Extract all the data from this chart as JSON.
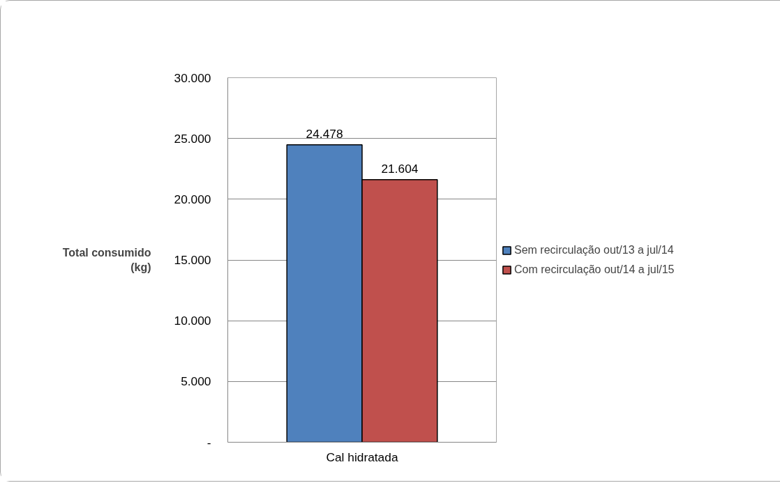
{
  "chart_data": {
    "type": "bar",
    "ylabel": "Total consumido\n(kg)",
    "categories": [
      "Cal hidratada"
    ],
    "series": [
      {
        "name": "Sem recirculação out/13 a jul/14",
        "color": "#4f81bd",
        "values": [
          24478
        ],
        "value_labels": [
          "24.478"
        ]
      },
      {
        "name": "Com recirculação out/14 a jul/15",
        "color": "#c0504d",
        "values": [
          21604
        ],
        "value_labels": [
          "21.604"
        ]
      }
    ],
    "ylim": [
      0,
      30000
    ],
    "yticks": [
      {
        "value": 0,
        "label": "-"
      },
      {
        "value": 5000,
        "label": "5.000"
      },
      {
        "value": 10000,
        "label": "10.000"
      },
      {
        "value": 15000,
        "label": "15.000"
      },
      {
        "value": 20000,
        "label": "20.000"
      },
      {
        "value": 25000,
        "label": "25.000"
      },
      {
        "value": 30000,
        "label": "30.000"
      }
    ],
    "grid": "y",
    "legend": "right"
  }
}
